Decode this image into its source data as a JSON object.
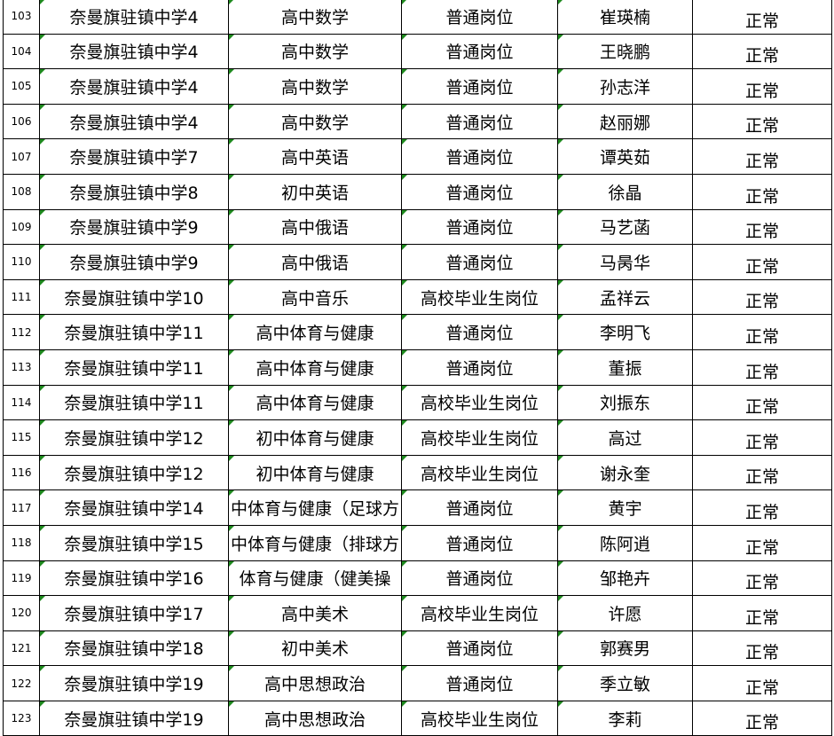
{
  "table": {
    "rows": [
      [
        "103",
        "奈曼旗驻镇中学4",
        "高中数学",
        "普通岗位",
        "崔瑛楠",
        "正常"
      ],
      [
        "104",
        "奈曼旗驻镇中学4",
        "高中数学",
        "普通岗位",
        "王晓鹏",
        "正常"
      ],
      [
        "105",
        "奈曼旗驻镇中学4",
        "高中数学",
        "普通岗位",
        "孙志洋",
        "正常"
      ],
      [
        "106",
        "奈曼旗驻镇中学4",
        "高中数学",
        "普通岗位",
        "赵丽娜",
        "正常"
      ],
      [
        "107",
        "奈曼旗驻镇中学7",
        "高中英语",
        "普通岗位",
        "谭英茹",
        "正常"
      ],
      [
        "108",
        "奈曼旗驻镇中学8",
        "初中英语",
        "普通岗位",
        "徐晶",
        "正常"
      ],
      [
        "109",
        "奈曼旗驻镇中学9",
        "高中俄语",
        "普通岗位",
        "马艺菡",
        "正常"
      ],
      [
        "110",
        "奈曼旗驻镇中学9",
        "高中俄语",
        "普通岗位",
        "马昺华",
        "正常"
      ],
      [
        "111",
        "奈曼旗驻镇中学10",
        "高中音乐",
        "高校毕业生岗位",
        "孟祥云",
        "正常"
      ],
      [
        "112",
        "奈曼旗驻镇中学11",
        "高中体育与健康",
        "普通岗位",
        "李明飞",
        "正常"
      ],
      [
        "113",
        "奈曼旗驻镇中学11",
        "高中体育与健康",
        "普通岗位",
        "董振",
        "正常"
      ],
      [
        "114",
        "奈曼旗驻镇中学11",
        "高中体育与健康",
        "高校毕业生岗位",
        "刘振东",
        "正常"
      ],
      [
        "115",
        "奈曼旗驻镇中学12",
        "初中体育与健康",
        "高校毕业生岗位",
        "高过",
        "正常"
      ],
      [
        "116",
        "奈曼旗驻镇中学12",
        "初中体育与健康",
        "高校毕业生岗位",
        "谢永奎",
        "正常"
      ],
      [
        "117",
        "奈曼旗驻镇中学14",
        "中体育与健康（足球方",
        "普通岗位",
        "黄宇",
        "正常"
      ],
      [
        "118",
        "奈曼旗驻镇中学15",
        "中体育与健康（排球方",
        "普通岗位",
        "陈阿逍",
        "正常"
      ],
      [
        "119",
        "奈曼旗驻镇中学16",
        "体育与健康（健美操",
        "普通岗位",
        "邹艳卉",
        "正常"
      ],
      [
        "120",
        "奈曼旗驻镇中学17",
        "高中美术",
        "高校毕业生岗位",
        "许愿",
        "正常"
      ],
      [
        "121",
        "奈曼旗驻镇中学18",
        "初中美术",
        "普通岗位",
        "郭赛男",
        "正常"
      ],
      [
        "122",
        "奈曼旗驻镇中学19",
        "高中思想政治",
        "普通岗位",
        "季立敏",
        "正常"
      ],
      [
        "123",
        "奈曼旗驻镇中学19",
        "高中思想政治",
        "高校毕业生岗位",
        "李莉",
        "正常"
      ]
    ]
  }
}
